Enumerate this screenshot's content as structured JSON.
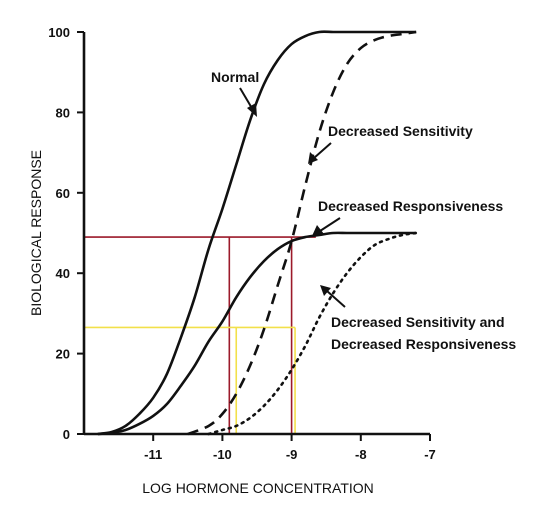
{
  "chart_data": {
    "type": "line",
    "title": "",
    "xlabel": "LOG HORMONE CONCENTRATION",
    "ylabel": "BIOLOGICAL RESPONSE",
    "xlim": [
      -12,
      -7
    ],
    "ylim": [
      0,
      100
    ],
    "x_ticks": [
      {
        "value": -11,
        "label": "-11"
      },
      {
        "value": -10,
        "label": "-10"
      },
      {
        "value": -9,
        "label": "-9"
      },
      {
        "value": -8,
        "label": "-8"
      },
      {
        "value": -7,
        "label": "-7"
      }
    ],
    "y_ticks": [
      {
        "value": 0,
        "label": "0"
      },
      {
        "value": 20,
        "label": "20"
      },
      {
        "value": 40,
        "label": "40"
      },
      {
        "value": 60,
        "label": "60"
      },
      {
        "value": 80,
        "label": "80"
      },
      {
        "value": 100,
        "label": "100"
      }
    ],
    "grid": false,
    "series": [
      {
        "name": "Normal",
        "style": "solid",
        "x": [
          -11.8,
          -11.6,
          -11.4,
          -11.2,
          -11.0,
          -10.8,
          -10.6,
          -10.4,
          -10.2,
          -10.0,
          -9.8,
          -9.6,
          -9.4,
          -9.2,
          -9.0,
          -8.8,
          -8.6,
          -8.4,
          -8.2,
          -8.0,
          -7.8,
          -7.6,
          -7.4,
          -7.2
        ],
        "values": [
          0,
          0.5,
          2,
          5,
          9,
          15,
          24,
          34,
          46,
          56,
          67,
          78,
          87,
          93,
          97,
          99,
          100,
          100,
          100,
          100,
          100,
          100,
          100,
          100
        ]
      },
      {
        "name": "Decreased Sensitivity",
        "style": "dashed",
        "x": [
          -10.5,
          -10.2,
          -10.0,
          -9.8,
          -9.6,
          -9.4,
          -9.2,
          -9.0,
          -8.8,
          -8.6,
          -8.4,
          -8.2,
          -8.0,
          -7.8,
          -7.6,
          -7.4,
          -7.2
        ],
        "values": [
          0,
          2,
          5,
          10,
          17,
          26,
          37,
          48,
          62,
          75,
          85,
          92,
          96,
          98,
          99,
          99.5,
          100
        ]
      },
      {
        "name": "Decreased Responsiveness",
        "style": "solid",
        "x": [
          -11.8,
          -11.6,
          -11.4,
          -11.2,
          -11.0,
          -10.8,
          -10.6,
          -10.4,
          -10.2,
          -10.0,
          -9.8,
          -9.6,
          -9.4,
          -9.2,
          -9.0,
          -8.8,
          -8.6,
          -8.4,
          -8.2,
          -8.0,
          -7.8,
          -7.6,
          -7.4,
          -7.2
        ],
        "values": [
          0,
          0.3,
          1,
          2.5,
          4.5,
          7.5,
          12,
          17,
          23,
          28,
          34,
          39,
          43,
          46,
          48,
          49,
          49.5,
          50,
          50,
          50,
          50,
          50,
          50,
          50
        ]
      },
      {
        "name": "Decreased Sensitivity and Decreased Responsiveness",
        "style": "dotted",
        "x": [
          -10.2,
          -10.0,
          -9.8,
          -9.6,
          -9.4,
          -9.2,
          -9.0,
          -8.8,
          -8.6,
          -8.4,
          -8.2,
          -8.0,
          -7.8,
          -7.6,
          -7.4,
          -7.2
        ],
        "values": [
          0,
          1,
          2,
          4,
          7,
          11,
          16,
          22,
          29,
          35,
          40,
          44,
          47,
          48.5,
          49.5,
          50
        ]
      }
    ],
    "reference_lines": [
      {
        "color": "#9c1a2a",
        "y": 49,
        "x_from": -12,
        "x_to": -8.65,
        "verticals": [
          -9.9,
          -9.0
        ]
      },
      {
        "color": "#f2e04a",
        "y": 26.5,
        "x_from": -12,
        "x_to": -8.95,
        "verticals": [
          -9.8,
          -8.95
        ]
      }
    ],
    "annotations": [
      {
        "text": "Normal",
        "series": 0
      },
      {
        "text": "Decreased Sensitivity",
        "series": 1
      },
      {
        "text": "Decreased Responsiveness",
        "series": 2
      },
      {
        "lines": [
          "Decreased Sensitivity and",
          "Decreased Responsiveness"
        ],
        "series": 3
      }
    ]
  }
}
